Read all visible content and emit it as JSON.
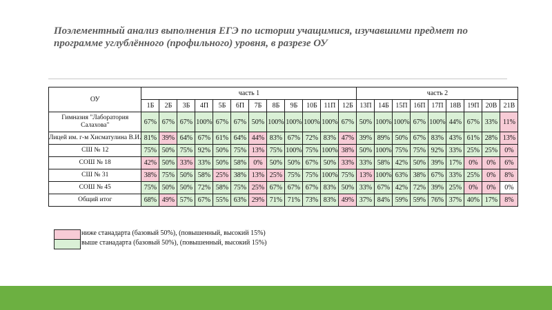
{
  "title": "Поэлементный анализ выполнения ЕГЭ по истории учащимися, изучавшими предмет по программе углублённого (профильного) уровня, в разрезе ОУ",
  "table": {
    "ou_header": "ОУ",
    "part1": "часть 1",
    "part2": "часть 2",
    "columns": [
      "1Б",
      "2Б",
      "3Б",
      "4П",
      "5Б",
      "6П",
      "7Б",
      "8Б",
      "9Б",
      "10Б",
      "11П",
      "12Б",
      "13П",
      "14Б",
      "15П",
      "16П",
      "17П",
      "18В",
      "19П",
      "20В",
      "21В"
    ],
    "rows": [
      {
        "name": "Гимназия \"Лаборатория Салахова\"",
        "cells": [
          {
            "v": "67%",
            "c": "g"
          },
          {
            "v": "67%",
            "c": "g"
          },
          {
            "v": "67%",
            "c": "g"
          },
          {
            "v": "100%",
            "c": "g"
          },
          {
            "v": "67%",
            "c": "g"
          },
          {
            "v": "67%",
            "c": "g"
          },
          {
            "v": "50%",
            "c": "g"
          },
          {
            "v": "100%",
            "c": "g"
          },
          {
            "v": "100%",
            "c": "g"
          },
          {
            "v": "100%",
            "c": "g"
          },
          {
            "v": "100%",
            "c": "g"
          },
          {
            "v": "67%",
            "c": "g"
          },
          {
            "v": "50%",
            "c": "g"
          },
          {
            "v": "100%",
            "c": "g"
          },
          {
            "v": "100%",
            "c": "g"
          },
          {
            "v": "67%",
            "c": "g"
          },
          {
            "v": "100%",
            "c": "g"
          },
          {
            "v": "44%",
            "c": "g"
          },
          {
            "v": "67%",
            "c": "g"
          },
          {
            "v": "33%",
            "c": "g"
          },
          {
            "v": "11%",
            "c": "r"
          }
        ]
      },
      {
        "name": "Лицей им. г-м Хисматулина В.И.",
        "cells": [
          {
            "v": "81%",
            "c": "g"
          },
          {
            "v": "39%",
            "c": "r"
          },
          {
            "v": "64%",
            "c": "g"
          },
          {
            "v": "67%",
            "c": "g"
          },
          {
            "v": "61%",
            "c": "g"
          },
          {
            "v": "64%",
            "c": "g"
          },
          {
            "v": "44%",
            "c": "r"
          },
          {
            "v": "83%",
            "c": "g"
          },
          {
            "v": "67%",
            "c": "g"
          },
          {
            "v": "72%",
            "c": "g"
          },
          {
            "v": "83%",
            "c": "g"
          },
          {
            "v": "47%",
            "c": "r"
          },
          {
            "v": "39%",
            "c": "g"
          },
          {
            "v": "89%",
            "c": "g"
          },
          {
            "v": "50%",
            "c": "g"
          },
          {
            "v": "67%",
            "c": "g"
          },
          {
            "v": "83%",
            "c": "g"
          },
          {
            "v": "43%",
            "c": "g"
          },
          {
            "v": "61%",
            "c": "g"
          },
          {
            "v": "28%",
            "c": "g"
          },
          {
            "v": "13%",
            "c": "r"
          }
        ]
      },
      {
        "name": "СШ № 12",
        "cells": [
          {
            "v": "75%",
            "c": "g"
          },
          {
            "v": "50%",
            "c": "g"
          },
          {
            "v": "75%",
            "c": "g"
          },
          {
            "v": "92%",
            "c": "g"
          },
          {
            "v": "50%",
            "c": "g"
          },
          {
            "v": "75%",
            "c": "g"
          },
          {
            "v": "13%",
            "c": "r"
          },
          {
            "v": "75%",
            "c": "g"
          },
          {
            "v": "100%",
            "c": "g"
          },
          {
            "v": "75%",
            "c": "g"
          },
          {
            "v": "100%",
            "c": "g"
          },
          {
            "v": "38%",
            "c": "r"
          },
          {
            "v": "50%",
            "c": "g"
          },
          {
            "v": "100%",
            "c": "g"
          },
          {
            "v": "75%",
            "c": "g"
          },
          {
            "v": "75%",
            "c": "g"
          },
          {
            "v": "92%",
            "c": "g"
          },
          {
            "v": "33%",
            "c": "g"
          },
          {
            "v": "25%",
            "c": "g"
          },
          {
            "v": "25%",
            "c": "g"
          },
          {
            "v": "0%",
            "c": "r"
          }
        ]
      },
      {
        "name": "СОШ № 18",
        "cells": [
          {
            "v": "42%",
            "c": "r"
          },
          {
            "v": "50%",
            "c": "g"
          },
          {
            "v": "33%",
            "c": "r"
          },
          {
            "v": "33%",
            "c": "g"
          },
          {
            "v": "50%",
            "c": "g"
          },
          {
            "v": "58%",
            "c": "g"
          },
          {
            "v": "0%",
            "c": "r"
          },
          {
            "v": "50%",
            "c": "g"
          },
          {
            "v": "50%",
            "c": "g"
          },
          {
            "v": "67%",
            "c": "g"
          },
          {
            "v": "50%",
            "c": "g"
          },
          {
            "v": "33%",
            "c": "r"
          },
          {
            "v": "33%",
            "c": "g"
          },
          {
            "v": "58%",
            "c": "g"
          },
          {
            "v": "42%",
            "c": "g"
          },
          {
            "v": "50%",
            "c": "g"
          },
          {
            "v": "39%",
            "c": "g"
          },
          {
            "v": "17%",
            "c": "g"
          },
          {
            "v": "0%",
            "c": "r"
          },
          {
            "v": "0%",
            "c": "r"
          },
          {
            "v": "6%",
            "c": "r"
          }
        ]
      },
      {
        "name": "СШ № 31",
        "cells": [
          {
            "v": "38%",
            "c": "r"
          },
          {
            "v": "75%",
            "c": "g"
          },
          {
            "v": "50%",
            "c": "g"
          },
          {
            "v": "58%",
            "c": "g"
          },
          {
            "v": "25%",
            "c": "r"
          },
          {
            "v": "38%",
            "c": "g"
          },
          {
            "v": "13%",
            "c": "r"
          },
          {
            "v": "25%",
            "c": "r"
          },
          {
            "v": "75%",
            "c": "g"
          },
          {
            "v": "75%",
            "c": "g"
          },
          {
            "v": "100%",
            "c": "g"
          },
          {
            "v": "75%",
            "c": "g"
          },
          {
            "v": "13%",
            "c": "r"
          },
          {
            "v": "100%",
            "c": "g"
          },
          {
            "v": "63%",
            "c": "g"
          },
          {
            "v": "38%",
            "c": "g"
          },
          {
            "v": "67%",
            "c": "g"
          },
          {
            "v": "33%",
            "c": "g"
          },
          {
            "v": "25%",
            "c": "g"
          },
          {
            "v": "0%",
            "c": "r"
          },
          {
            "v": "8%",
            "c": "r"
          }
        ]
      },
      {
        "name": "СОШ № 45",
        "cells": [
          {
            "v": "75%",
            "c": "g"
          },
          {
            "v": "50%",
            "c": "g"
          },
          {
            "v": "50%",
            "c": "g"
          },
          {
            "v": "72%",
            "c": "g"
          },
          {
            "v": "58%",
            "c": "g"
          },
          {
            "v": "75%",
            "c": "g"
          },
          {
            "v": "25%",
            "c": "r"
          },
          {
            "v": "67%",
            "c": "g"
          },
          {
            "v": "67%",
            "c": "g"
          },
          {
            "v": "67%",
            "c": "g"
          },
          {
            "v": "83%",
            "c": "g"
          },
          {
            "v": "50%",
            "c": "g"
          },
          {
            "v": "33%",
            "c": "g"
          },
          {
            "v": "67%",
            "c": "g"
          },
          {
            "v": "42%",
            "c": "g"
          },
          {
            "v": "72%",
            "c": "g"
          },
          {
            "v": "39%",
            "c": "g"
          },
          {
            "v": "25%",
            "c": "g"
          },
          {
            "v": "0%",
            "c": "r"
          },
          {
            "v": "0%",
            "c": "r"
          },
          {
            "v": "0%",
            "c": "w"
          }
        ]
      },
      {
        "name": "Общий итог",
        "cells": [
          {
            "v": "68%",
            "c": "g"
          },
          {
            "v": "49%",
            "c": "r"
          },
          {
            "v": "57%",
            "c": "g"
          },
          {
            "v": "67%",
            "c": "g"
          },
          {
            "v": "55%",
            "c": "g"
          },
          {
            "v": "63%",
            "c": "g"
          },
          {
            "v": "29%",
            "c": "r"
          },
          {
            "v": "71%",
            "c": "g"
          },
          {
            "v": "71%",
            "c": "g"
          },
          {
            "v": "73%",
            "c": "g"
          },
          {
            "v": "83%",
            "c": "g"
          },
          {
            "v": "49%",
            "c": "r"
          },
          {
            "v": "37%",
            "c": "g"
          },
          {
            "v": "84%",
            "c": "g"
          },
          {
            "v": "59%",
            "c": "g"
          },
          {
            "v": "59%",
            "c": "g"
          },
          {
            "v": "76%",
            "c": "g"
          },
          {
            "v": "37%",
            "c": "g"
          },
          {
            "v": "40%",
            "c": "g"
          },
          {
            "v": "17%",
            "c": "g"
          },
          {
            "v": "8%",
            "c": "r"
          }
        ]
      }
    ]
  },
  "legend": {
    "below": "ниже станадарта (базовый 50%), (повышенный, высокий 15%)",
    "above": "выше станадарта (базовый 50%), (повышенный, высокий 15%)",
    "below_color": "#f7cbd6",
    "above_color": "#daf0d6"
  },
  "colors": {
    "bottom_bar": "#6cb041",
    "title": "#5a5a5a"
  }
}
